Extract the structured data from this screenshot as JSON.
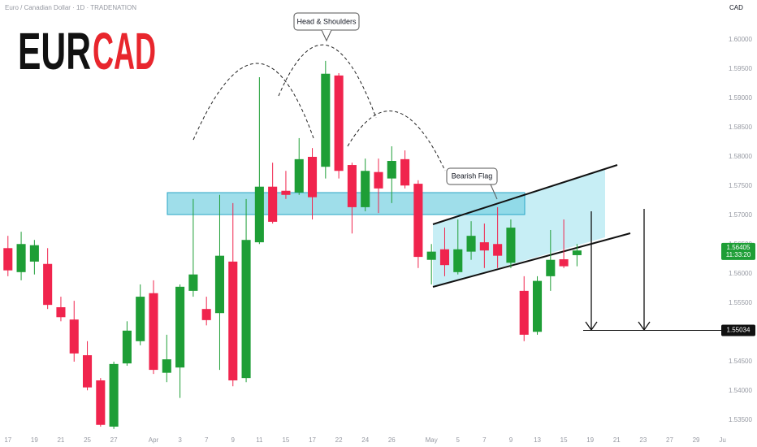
{
  "chart_data": {
    "type": "candlestick",
    "title": "Euro / Canadian Dollar · 1D · TRADENATION",
    "currency": "CAD",
    "logo_left": "EUR",
    "logo_right": "CAD",
    "annotations": [
      "Head & Shoulders",
      "Bearish Flag"
    ],
    "up_color": "#1e9e36",
    "down_color": "#f0244d",
    "grid": false,
    "x": [
      0,
      1,
      2,
      3,
      4,
      5,
      6,
      7,
      8,
      9,
      10,
      11,
      12,
      13,
      14,
      15,
      16,
      17,
      18,
      19,
      20,
      21,
      22,
      23,
      24,
      25,
      26,
      27,
      28,
      29,
      30,
      31,
      32,
      33,
      34,
      35,
      36,
      37,
      38,
      39,
      40,
      41,
      42,
      43
    ],
    "open": [
      1.5644,
      1.5603,
      1.5621,
      1.5617,
      1.5543,
      1.5522,
      1.5461,
      1.5418,
      1.5339,
      1.5447,
      1.5485,
      1.5567,
      1.5431,
      1.544,
      1.5571,
      1.554,
      1.5533,
      1.5621,
      1.5422,
      1.5654,
      1.5749,
      1.5742,
      1.5739,
      1.58,
      1.5783,
      1.5939,
      1.5786,
      1.5714,
      1.5774,
      1.5763,
      1.5796,
      1.5754,
      1.5624,
      1.5642,
      1.5603,
      1.5638,
      1.5654,
      1.5651,
      1.5619,
      1.5571,
      1.5501,
      1.5596,
      1.5625,
      1.5632
    ],
    "high": [
      1.5665,
      1.5672,
      1.5658,
      1.5644,
      1.5561,
      1.5554,
      1.5485,
      1.5422,
      1.545,
      1.5519,
      1.5582,
      1.5589,
      1.5496,
      1.5582,
      1.5728,
      1.5561,
      1.5735,
      1.5721,
      1.5728,
      1.5936,
      1.579,
      1.5776,
      1.5832,
      1.5815,
      1.5964,
      1.5943,
      1.579,
      1.5797,
      1.5797,
      1.5818,
      1.5811,
      1.576,
      1.5651,
      1.5679,
      1.5693,
      1.569,
      1.5686,
      1.5714,
      1.5693,
      1.5596,
      1.5596,
      1.5675,
      1.5693,
      1.5651
    ],
    "low": [
      1.5596,
      1.5589,
      1.5599,
      1.554,
      1.5519,
      1.545,
      1.5401,
      1.5339,
      1.5335,
      1.5443,
      1.5478,
      1.5429,
      1.5415,
      1.5388,
      1.5561,
      1.5512,
      1.5436,
      1.5408,
      1.5415,
      1.5651,
      1.5686,
      1.5728,
      1.5735,
      1.5693,
      1.5763,
      1.5763,
      1.5669,
      1.5707,
      1.5704,
      1.5721,
      1.5746,
      1.561,
      1.5582,
      1.5596,
      1.5599,
      1.5624,
      1.561,
      1.561,
      1.561,
      1.5485,
      1.5496,
      1.5571,
      1.561,
      1.5613
    ],
    "close": [
      1.5606,
      1.5651,
      1.5649,
      1.5547,
      1.5526,
      1.5464,
      1.5406,
      1.5342,
      1.5446,
      1.5503,
      1.5561,
      1.5436,
      1.5454,
      1.5578,
      1.5599,
      1.5521,
      1.5631,
      1.5418,
      1.5658,
      1.5749,
      1.5689,
      1.5735,
      1.5796,
      1.5731,
      1.5942,
      1.5776,
      1.5714,
      1.5776,
      1.5746,
      1.5793,
      1.5751,
      1.5629,
      1.5638,
      1.5615,
      1.5642,
      1.5665,
      1.564,
      1.5631,
      1.5679,
      1.5496,
      1.5588,
      1.5624,
      1.5613,
      1.564
    ],
    "xlim": [
      -0.6,
      56.6
    ],
    "xticks": [
      {
        "value": 0,
        "label": "17"
      },
      {
        "value": 2,
        "label": "19"
      },
      {
        "value": 4,
        "label": "21"
      },
      {
        "value": 6,
        "label": "25"
      },
      {
        "value": 8,
        "label": "27"
      },
      {
        "value": 11,
        "label": "Apr"
      },
      {
        "value": 13,
        "label": "3"
      },
      {
        "value": 15,
        "label": "7"
      },
      {
        "value": 17,
        "label": "9"
      },
      {
        "value": 19,
        "label": "11"
      },
      {
        "value": 21,
        "label": "15"
      },
      {
        "value": 23,
        "label": "17"
      },
      {
        "value": 25,
        "label": "22"
      },
      {
        "value": 27,
        "label": "24"
      },
      {
        "value": 29,
        "label": "26"
      },
      {
        "value": 32,
        "label": "May"
      },
      {
        "value": 34,
        "label": "5"
      },
      {
        "value": 36,
        "label": "7"
      },
      {
        "value": 38,
        "label": "9"
      },
      {
        "value": 40,
        "label": "13"
      },
      {
        "value": 42,
        "label": "15"
      },
      {
        "value": 44,
        "label": "19"
      },
      {
        "value": 46,
        "label": "21"
      },
      {
        "value": 48,
        "label": "23"
      },
      {
        "value": 50,
        "label": "27"
      },
      {
        "value": 52,
        "label": "29"
      },
      {
        "value": 54,
        "label": "Ju"
      }
    ],
    "ylim": [
      1.5325,
      1.6068
    ],
    "yticks": [
      {
        "value": 1.535,
        "label": "1.53500"
      },
      {
        "value": 1.54,
        "label": "1.54000"
      },
      {
        "value": 1.545,
        "label": "1.54500"
      },
      {
        "value": 1.55,
        "label": "1.55000"
      },
      {
        "value": 1.555,
        "label": "1.55500"
      },
      {
        "value": 1.56,
        "label": "1.56000"
      },
      {
        "value": 1.565,
        "label": "1.56500"
      },
      {
        "value": 1.57,
        "label": "1.57000"
      },
      {
        "value": 1.575,
        "label": "1.57500"
      },
      {
        "value": 1.58,
        "label": "1.58000"
      },
      {
        "value": 1.585,
        "label": "1.58500"
      },
      {
        "value": 1.59,
        "label": "1.59000"
      },
      {
        "value": 1.595,
        "label": "1.59500"
      },
      {
        "value": 1.6,
        "label": "1.60000"
      }
    ],
    "last_price": 1.56405,
    "countdown": "11:33:20",
    "target_price": 1.55034
  }
}
